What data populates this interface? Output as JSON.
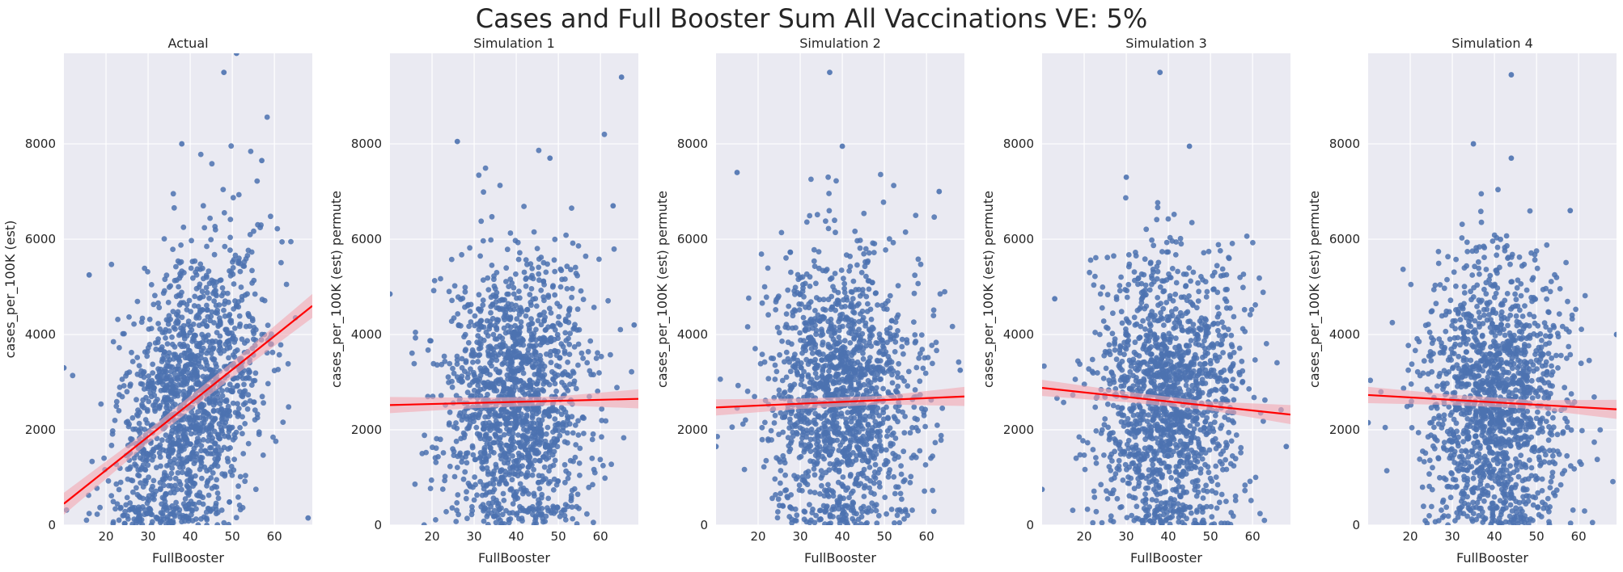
{
  "figure": {
    "title": "Cases and Full Booster Sum All Vaccinations VE: 5%"
  },
  "colors": {
    "panel_bg": "#EAEAF2",
    "grid": "#FFFFFF",
    "points": "#4C72B0",
    "fit_line": "#FF0000",
    "ci_band": "#F4A7B0"
  },
  "chart_data": [
    {
      "type": "scatter",
      "title": "Actual",
      "xlabel": "FullBooster",
      "ylabel": "cases_per_100K (est)",
      "xlim": [
        10,
        69
      ],
      "ylim": [
        0,
        9900
      ],
      "xticks": [
        20,
        30,
        40,
        50,
        60
      ],
      "yticks": [
        0,
        2000,
        4000,
        6000,
        8000
      ],
      "grid": true,
      "regression": {
        "x": [
          10,
          69
        ],
        "y": [
          450,
          4600
        ]
      },
      "ci_halfwidth": [
        230,
        140,
        160,
        250
      ],
      "outliers": [
        {
          "x": 51,
          "y": 9900
        },
        {
          "x": 48,
          "y": 9500
        },
        {
          "x": 38,
          "y": 8000
        },
        {
          "x": 57,
          "y": 7650
        },
        {
          "x": 16,
          "y": 5250
        },
        {
          "x": 10,
          "y": 3300
        },
        {
          "x": 65,
          "y": 4350
        },
        {
          "x": 68,
          "y": 150
        }
      ],
      "cloud": {
        "center_x": 40,
        "sd_x": 8.5,
        "base_y": 2600,
        "slope": 70,
        "sd_y": 1500,
        "n": 1500,
        "seed": 7
      }
    },
    {
      "type": "scatter",
      "title": "Simulation 1",
      "xlabel": "FullBooster",
      "ylabel": "cases_per_100K (est) permute",
      "xlim": [
        10,
        69
      ],
      "ylim": [
        0,
        9900
      ],
      "xticks": [
        20,
        30,
        40,
        50,
        60
      ],
      "yticks": [
        0,
        2000,
        4000,
        6000,
        8000
      ],
      "grid": true,
      "regression": {
        "x": [
          10,
          69
        ],
        "y": [
          2520,
          2650
        ]
      },
      "ci_halfwidth": [
        170,
        110,
        90,
        200
      ],
      "outliers": [
        {
          "x": 65,
          "y": 9400
        },
        {
          "x": 26,
          "y": 8050
        },
        {
          "x": 48,
          "y": 7700
        },
        {
          "x": 10,
          "y": 4850
        },
        {
          "x": 68,
          "y": 4200
        },
        {
          "x": 63,
          "y": 6700
        }
      ],
      "cloud": {
        "center_x": 40,
        "sd_x": 8.5,
        "base_y": 2600,
        "slope": 0,
        "sd_y": 1500,
        "n": 1500,
        "seed": 11
      }
    },
    {
      "type": "scatter",
      "title": "Simulation 2",
      "xlabel": "FullBooster",
      "ylabel": "cases_per_100K (est) permute",
      "xlim": [
        10,
        69
      ],
      "ylim": [
        0,
        9900
      ],
      "xticks": [
        20,
        30,
        40,
        50,
        60
      ],
      "yticks": [
        0,
        2000,
        4000,
        6000,
        8000
      ],
      "grid": true,
      "regression": {
        "x": [
          10,
          69
        ],
        "y": [
          2470,
          2700
        ]
      },
      "ci_halfwidth": [
        170,
        110,
        90,
        200
      ],
      "outliers": [
        {
          "x": 37,
          "y": 9500
        },
        {
          "x": 40,
          "y": 7950
        },
        {
          "x": 15,
          "y": 7400
        },
        {
          "x": 63,
          "y": 7000
        },
        {
          "x": 10,
          "y": 1650
        },
        {
          "x": 68,
          "y": 3250
        }
      ],
      "cloud": {
        "center_x": 40,
        "sd_x": 8.5,
        "base_y": 2600,
        "slope": 0,
        "sd_y": 1500,
        "n": 1500,
        "seed": 23
      }
    },
    {
      "type": "scatter",
      "title": "Simulation 3",
      "xlabel": "FullBooster",
      "ylabel": "cases_per_100K (est) permute",
      "xlim": [
        10,
        69
      ],
      "ylim": [
        0,
        9900
      ],
      "xticks": [
        20,
        30,
        40,
        50,
        60
      ],
      "yticks": [
        0,
        2000,
        4000,
        6000,
        8000
      ],
      "grid": true,
      "regression": {
        "x": [
          10,
          69
        ],
        "y": [
          2880,
          2320
        ]
      },
      "ci_halfwidth": [
        170,
        110,
        90,
        200
      ],
      "outliers": [
        {
          "x": 38,
          "y": 9500
        },
        {
          "x": 45,
          "y": 7950
        },
        {
          "x": 30,
          "y": 7300
        },
        {
          "x": 13,
          "y": 4750
        },
        {
          "x": 10,
          "y": 750
        },
        {
          "x": 68,
          "y": 1650
        }
      ],
      "cloud": {
        "center_x": 40,
        "sd_x": 8.5,
        "base_y": 2600,
        "slope": 0,
        "sd_y": 1500,
        "n": 1500,
        "seed": 37
      }
    },
    {
      "type": "scatter",
      "title": "Simulation 4",
      "xlabel": "FullBooster",
      "ylabel": "cases_per_100K (est) permute",
      "xlim": [
        10,
        69
      ],
      "ylim": [
        0,
        9900
      ],
      "xticks": [
        20,
        30,
        40,
        50,
        60
      ],
      "yticks": [
        0,
        2000,
        4000,
        6000,
        8000
      ],
      "grid": true,
      "regression": {
        "x": [
          10,
          69
        ],
        "y": [
          2730,
          2430
        ]
      },
      "ci_halfwidth": [
        170,
        110,
        90,
        200
      ],
      "outliers": [
        {
          "x": 44,
          "y": 9450
        },
        {
          "x": 35,
          "y": 8000
        },
        {
          "x": 44,
          "y": 7700
        },
        {
          "x": 10,
          "y": 2150
        },
        {
          "x": 69,
          "y": 4000
        },
        {
          "x": 58,
          "y": 6600
        }
      ],
      "cloud": {
        "center_x": 40,
        "sd_x": 8.5,
        "base_y": 2600,
        "slope": 0,
        "sd_y": 1500,
        "n": 1500,
        "seed": 53
      }
    }
  ]
}
